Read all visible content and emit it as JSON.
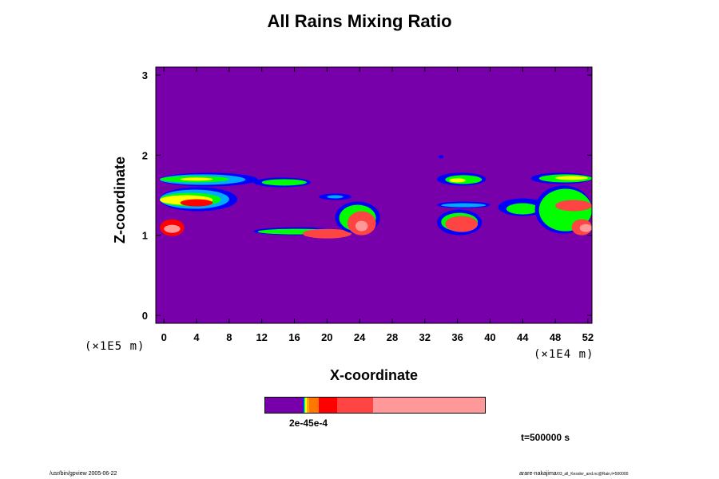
{
  "chart_data": {
    "type": "heatmap",
    "title": "All Rains Mixing Ratio",
    "xlabel": "X-coordinate",
    "ylabel": "Z-coordinate",
    "x_scale_note": "(×1E4 m)",
    "y_scale_note": "(×1E5 m)",
    "x_ticks": [
      "0",
      "4",
      "8",
      "12",
      "16",
      "20",
      "24",
      "28",
      "32",
      "36",
      "40",
      "44",
      "48",
      "52"
    ],
    "y_ticks": [
      "0",
      "1",
      "2",
      "3"
    ],
    "xlim": [
      -1,
      52.5
    ],
    "ylim": [
      -0.1,
      3.1
    ],
    "background_color": "#7700aa",
    "colorbar": {
      "segments": [
        {
          "color": "#7700aa",
          "weight": 46
        },
        {
          "color": "#0000ff",
          "weight": 1
        },
        {
          "color": "#00aaff",
          "weight": 1
        },
        {
          "color": "#00ff00",
          "weight": 1
        },
        {
          "color": "#ffff00",
          "weight": 2
        },
        {
          "color": "#ffaa00",
          "weight": 3
        },
        {
          "color": "#ff7700",
          "weight": 12
        },
        {
          "color": "#ff0000",
          "weight": 23
        },
        {
          "color": "#ff4444",
          "weight": 45
        },
        {
          "color": "#ff9999",
          "weight": 138
        }
      ],
      "label": "2e-45e-4"
    },
    "time_label": "t=500000 s",
    "regions": [
      {
        "color": "#0000ff",
        "x": [
          -0.5,
          11.5
        ],
        "z": [
          1.61,
          1.78
        ]
      },
      {
        "color": "#00aaff",
        "x": [
          -0.5,
          10
        ],
        "z": [
          1.63,
          1.76
        ]
      },
      {
        "color": "#00ff00",
        "x": [
          -0.5,
          8
        ],
        "z": [
          1.66,
          1.74
        ]
      },
      {
        "color": "#ffff00",
        "x": [
          2,
          6
        ],
        "z": [
          1.68,
          1.72
        ]
      },
      {
        "color": "#0000ff",
        "x": [
          -0.5,
          9
        ],
        "z": [
          1.3,
          1.6
        ]
      },
      {
        "color": "#00aaff",
        "x": [
          -0.5,
          8
        ],
        "z": [
          1.33,
          1.57
        ]
      },
      {
        "color": "#00ff00",
        "x": [
          -0.5,
          7
        ],
        "z": [
          1.36,
          1.53
        ]
      },
      {
        "color": "#ffff00",
        "x": [
          -0.5,
          6
        ],
        "z": [
          1.38,
          1.5
        ]
      },
      {
        "color": "#ff0000",
        "x": [
          2,
          6
        ],
        "z": [
          1.36,
          1.45
        ]
      },
      {
        "color": "#ff0000",
        "x": [
          -0.5,
          2.5
        ],
        "z": [
          0.99,
          1.2
        ]
      },
      {
        "color": "#ff9999",
        "x": [
          0,
          2
        ],
        "z": [
          1.03,
          1.13
        ]
      },
      {
        "color": "#0000ff",
        "x": [
          11,
          22
        ],
        "z": [
          1.0,
          1.1
        ]
      },
      {
        "color": "#00ff00",
        "x": [
          11.5,
          21
        ],
        "z": [
          1.01,
          1.08
        ]
      },
      {
        "color": "#ff4444",
        "x": [
          17,
          23
        ],
        "z": [
          0.96,
          1.08
        ]
      },
      {
        "color": "#0000ff",
        "x": [
          21,
          26.5
        ],
        "z": [
          1.02,
          1.42
        ]
      },
      {
        "color": "#00ff00",
        "x": [
          21.5,
          26
        ],
        "z": [
          1.05,
          1.38
        ]
      },
      {
        "color": "#ff4444",
        "x": [
          22.5,
          26
        ],
        "z": [
          1.0,
          1.3
        ]
      },
      {
        "color": "#ff9999",
        "x": [
          23.5,
          25
        ],
        "z": [
          1.05,
          1.18
        ]
      },
      {
        "color": "#0000ff",
        "x": [
          11,
          18
        ],
        "z": [
          1.6,
          1.72
        ]
      },
      {
        "color": "#00ff00",
        "x": [
          12,
          17.5
        ],
        "z": [
          1.62,
          1.7
        ]
      },
      {
        "color": "#0000ff",
        "x": [
          19,
          23
        ],
        "z": [
          1.44,
          1.52
        ]
      },
      {
        "color": "#00aaff",
        "x": [
          20,
          22
        ],
        "z": [
          1.46,
          1.5
        ]
      },
      {
        "color": "#0000ff",
        "x": [
          33.5,
          39
        ],
        "z": [
          1.0,
          1.32
        ]
      },
      {
        "color": "#00ff00",
        "x": [
          34,
          38.5
        ],
        "z": [
          1.05,
          1.28
        ]
      },
      {
        "color": "#ff4444",
        "x": [
          34.5,
          38.5
        ],
        "z": [
          1.04,
          1.24
        ]
      },
      {
        "color": "#0000ff",
        "x": [
          33.5,
          40
        ],
        "z": [
          1.34,
          1.42
        ]
      },
      {
        "color": "#00aaff",
        "x": [
          34,
          39.5
        ],
        "z": [
          1.35,
          1.4
        ]
      },
      {
        "color": "#0000ff",
        "x": [
          33.5,
          39.5
        ],
        "z": [
          1.62,
          1.78
        ]
      },
      {
        "color": "#00ff00",
        "x": [
          34.5,
          39
        ],
        "z": [
          1.64,
          1.75
        ]
      },
      {
        "color": "#ffff00",
        "x": [
          35,
          37
        ],
        "z": [
          1.66,
          1.71
        ]
      },
      {
        "color": "#0000ff",
        "x": [
          41,
          47
        ],
        "z": [
          1.24,
          1.46
        ]
      },
      {
        "color": "#00ff00",
        "x": [
          42,
          46
        ],
        "z": [
          1.26,
          1.4
        ]
      },
      {
        "color": "#0000ff",
        "x": [
          45.5,
          52.5
        ],
        "z": [
          1.02,
          1.62
        ]
      },
      {
        "color": "#00ff00",
        "x": [
          46,
          52.5
        ],
        "z": [
          1.05,
          1.58
        ]
      },
      {
        "color": "#ff4444",
        "x": [
          48,
          52.5
        ],
        "z": [
          1.3,
          1.44
        ]
      },
      {
        "color": "#ff4444",
        "x": [
          50,
          52.5
        ],
        "z": [
          1.0,
          1.2
        ]
      },
      {
        "color": "#ff9999",
        "x": [
          51,
          52.5
        ],
        "z": [
          1.04,
          1.14
        ]
      },
      {
        "color": "#0000ff",
        "x": [
          45,
          52.5
        ],
        "z": [
          1.64,
          1.78
        ]
      },
      {
        "color": "#00ff00",
        "x": [
          46,
          52.5
        ],
        "z": [
          1.66,
          1.76
        ]
      },
      {
        "color": "#ffff00",
        "x": [
          48,
          52
        ],
        "z": [
          1.69,
          1.74
        ]
      },
      {
        "color": "#0000ff",
        "x": [
          33.7,
          34.3
        ],
        "z": [
          1.96,
          2.0
        ]
      }
    ]
  },
  "footer": {
    "left": "/usr/bin/gpview 2005-06-22",
    "right_main": "arare-nakajima",
    "right_small": "/03_all_Kessler_and.nc@Rain,t=500000"
  }
}
